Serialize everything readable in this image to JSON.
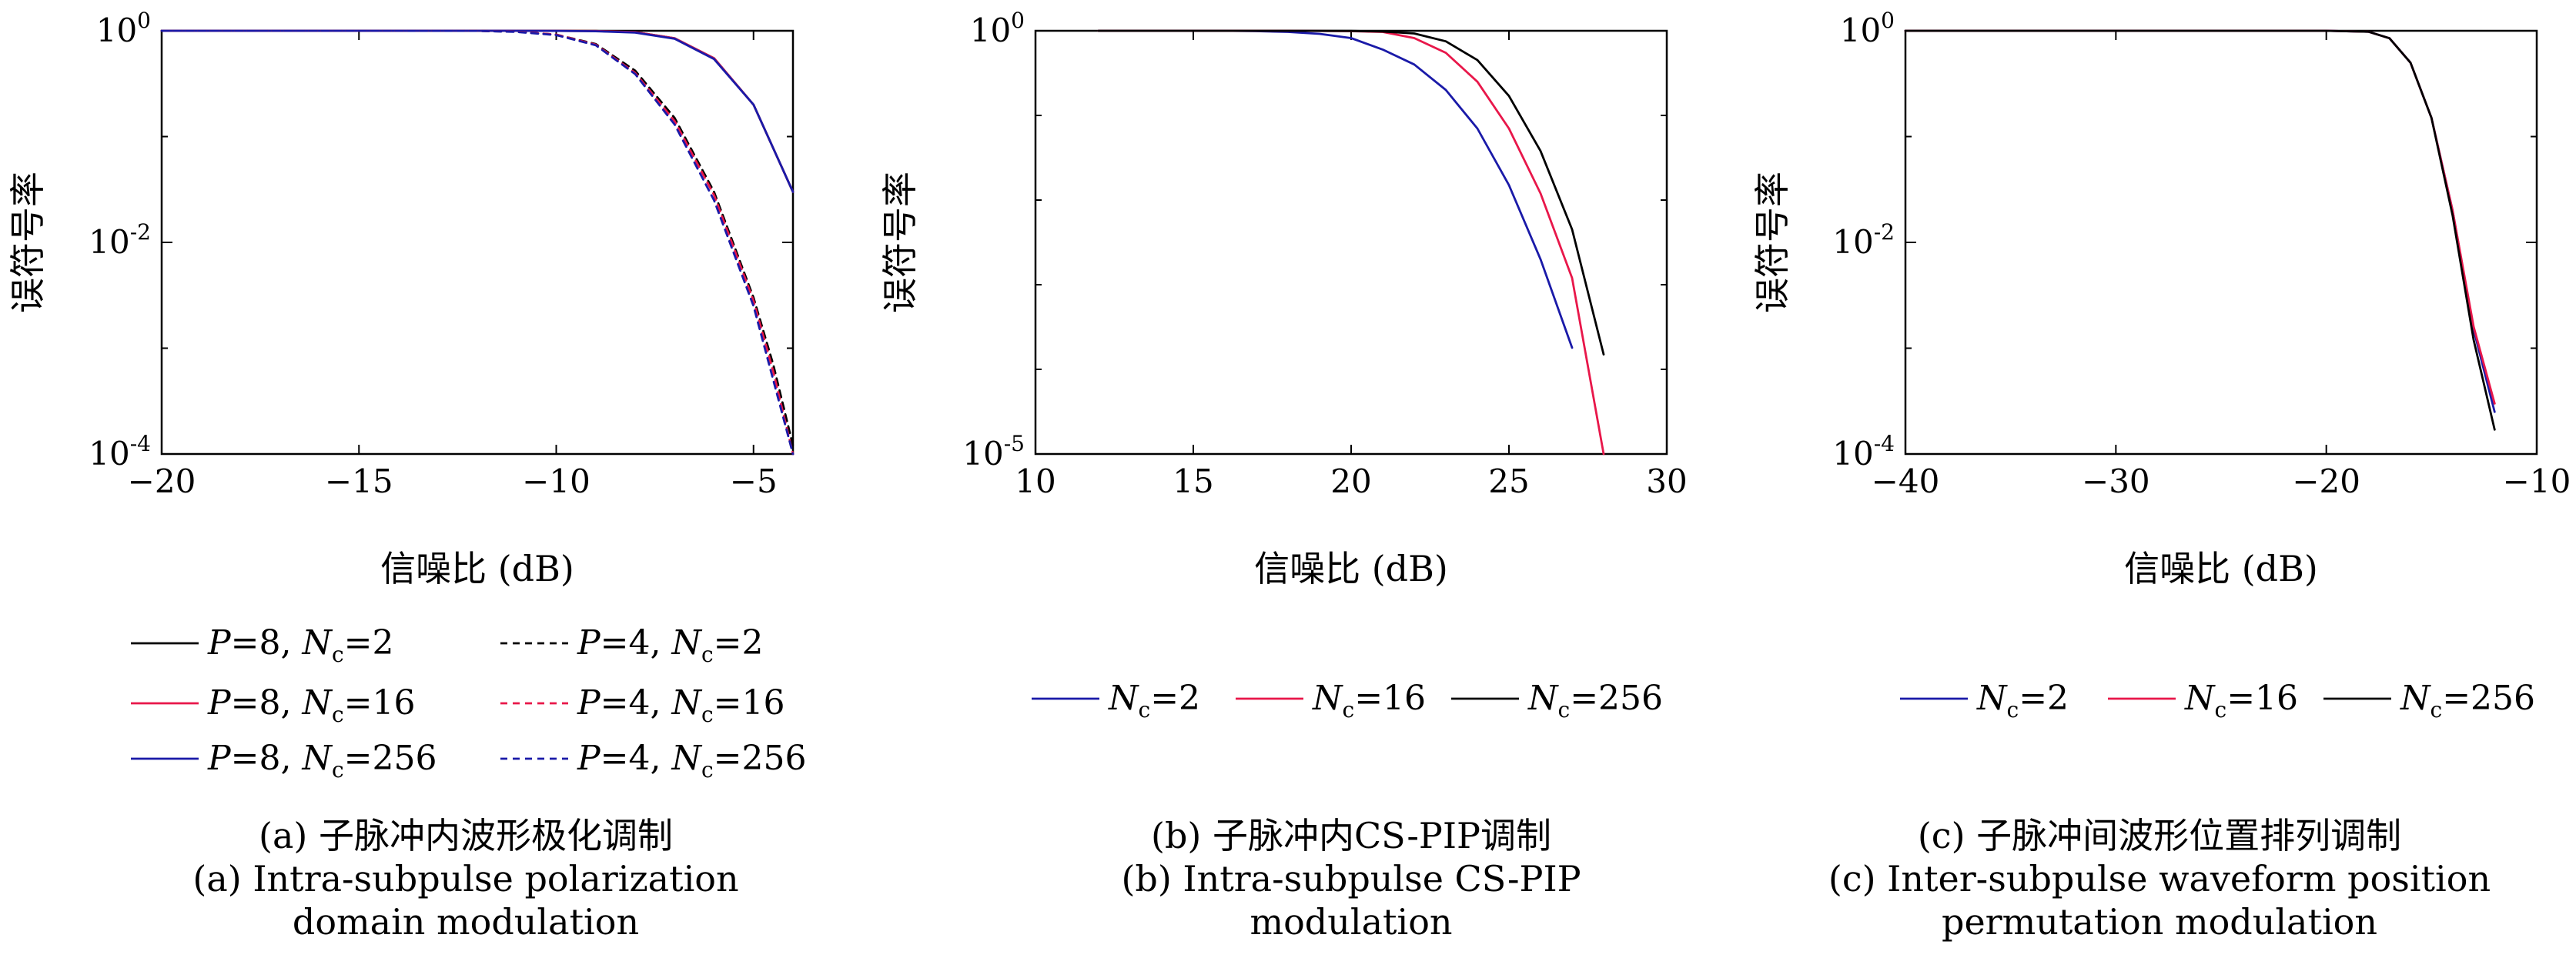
{
  "colors": {
    "black": "#000000",
    "red": "#e8174a",
    "blue": "#1a1aa8"
  },
  "chart_data": [
    {
      "id": "a",
      "type": "line",
      "y_scale": "log",
      "grid": false,
      "xlabel": "信噪比 (dB)",
      "ylabel": "误符号率",
      "xlim": [
        -20,
        -4
      ],
      "ylim": [
        0.0001,
        1
      ],
      "xticks": [
        -20,
        -15,
        -10,
        -5
      ],
      "xtick_labels": [
        "−20",
        "−15",
        "−10",
        "−5"
      ],
      "yticks": [
        1,
        0.01,
        0.0001
      ],
      "ytick_labels": [
        [
          "10",
          "0"
        ],
        [
          "10",
          "-2"
        ],
        [
          "10",
          "-4"
        ]
      ],
      "legend_position": "below",
      "series": [
        {
          "name": "P=8, N_c=2",
          "label_parts": [
            "P",
            "=8, ",
            "N",
            "c",
            "=2"
          ],
          "color": "black",
          "dash": false,
          "x": [
            -20,
            -18,
            -16,
            -14,
            -12,
            -10,
            -9,
            -8,
            -7,
            -6,
            -5,
            -4
          ],
          "y": [
            1,
            1,
            1,
            1,
            1,
            0.999,
            0.995,
            0.97,
            0.85,
            0.55,
            0.2,
            0.03
          ]
        },
        {
          "name": "P=8, N_c=16",
          "label_parts": [
            "P",
            "=8, ",
            "N",
            "c",
            "=16"
          ],
          "color": "red",
          "dash": false,
          "x": [
            -20,
            -18,
            -16,
            -14,
            -12,
            -10,
            -9,
            -8,
            -7,
            -6,
            -5,
            -4
          ],
          "y": [
            1,
            1,
            1,
            1,
            1,
            0.999,
            0.995,
            0.97,
            0.85,
            0.55,
            0.2,
            0.03
          ]
        },
        {
          "name": "P=8, N_c=256",
          "label_parts": [
            "P",
            "=8, ",
            "N",
            "c",
            "=256"
          ],
          "color": "blue",
          "dash": false,
          "x": [
            -20,
            -18,
            -16,
            -14,
            -12,
            -10,
            -9,
            -8,
            -7,
            -6,
            -5,
            -4
          ],
          "y": [
            1,
            1,
            1,
            1,
            1,
            0.998,
            0.99,
            0.96,
            0.84,
            0.54,
            0.2,
            0.03
          ]
        },
        {
          "name": "P=4, N_c=2",
          "label_parts": [
            "P",
            "=4, ",
            "N",
            "c",
            "=2"
          ],
          "color": "black",
          "dash": true,
          "x": [
            -20,
            -15,
            -12,
            -11,
            -10,
            -9,
            -8,
            -7,
            -6,
            -5,
            -4.5,
            -4
          ],
          "y": [
            1,
            1,
            0.998,
            0.98,
            0.92,
            0.75,
            0.42,
            0.15,
            0.03,
            0.003,
            0.0007,
            0.00012
          ]
        },
        {
          "name": "P=4, N_c=16",
          "label_parts": [
            "P",
            "=4, ",
            "N",
            "c",
            "=16"
          ],
          "color": "red",
          "dash": true,
          "x": [
            -20,
            -15,
            -12,
            -11,
            -10,
            -9,
            -8,
            -7,
            -6,
            -5,
            -4.5,
            -4
          ],
          "y": [
            1,
            1,
            0.998,
            0.98,
            0.92,
            0.74,
            0.4,
            0.14,
            0.028,
            0.0028,
            0.0006,
            0.0001
          ]
        },
        {
          "name": "P=4, N_c=256",
          "label_parts": [
            "P",
            "=4, ",
            "N",
            "c",
            "=256"
          ],
          "color": "blue",
          "dash": true,
          "x": [
            -20,
            -15,
            -12,
            -11,
            -10,
            -9,
            -8,
            -7,
            -6,
            -5,
            -4.5,
            -4
          ],
          "y": [
            1,
            1,
            0.998,
            0.975,
            0.91,
            0.73,
            0.39,
            0.13,
            0.025,
            0.0025,
            0.0005,
            9e-05
          ]
        }
      ],
      "caption": [
        "(a) 子脉冲内波形极化调制",
        "(a) Intra-subpulse polarization",
        "domain modulation"
      ]
    },
    {
      "id": "b",
      "type": "line",
      "y_scale": "log",
      "grid": false,
      "xlabel": "信噪比 (dB)",
      "ylabel": "误符号率",
      "xlim": [
        10,
        30
      ],
      "ylim": [
        1e-05,
        1
      ],
      "xticks": [
        10,
        15,
        20,
        25,
        30
      ],
      "xtick_labels": [
        "10",
        "15",
        "20",
        "25",
        "30"
      ],
      "yticks": [
        1,
        1e-05
      ],
      "ytick_labels": [
        [
          "10",
          "0"
        ],
        [
          "10",
          "-5"
        ]
      ],
      "legend_position": "below",
      "series": [
        {
          "name": "N_c=2",
          "label_parts": [
            "",
            "",
            "N",
            "c",
            "=2"
          ],
          "color": "blue",
          "dash": false,
          "x": [
            12,
            16,
            17,
            18,
            19,
            20,
            21,
            22,
            23,
            24,
            25,
            26,
            27
          ],
          "y": [
            1,
            1,
            0.99,
            0.97,
            0.92,
            0.82,
            0.6,
            0.4,
            0.2,
            0.07,
            0.015,
            0.002,
            0.00018
          ]
        },
        {
          "name": "N_c=16",
          "label_parts": [
            "",
            "",
            "N",
            "c",
            "=16"
          ],
          "color": "red",
          "dash": false,
          "x": [
            12,
            18,
            20,
            21,
            22,
            23,
            24,
            25,
            26,
            27,
            28
          ],
          "y": [
            1,
            1,
            0.99,
            0.97,
            0.82,
            0.55,
            0.25,
            0.07,
            0.012,
            0.0012,
            1e-05
          ]
        },
        {
          "name": "N_c=256",
          "label_parts": [
            "",
            "",
            "N",
            "c",
            "=256"
          ],
          "color": "black",
          "dash": false,
          "x": [
            12,
            18,
            20,
            21,
            22,
            23,
            24,
            25,
            26,
            27,
            28
          ],
          "y": [
            1,
            1,
            0.995,
            0.98,
            0.93,
            0.75,
            0.45,
            0.17,
            0.038,
            0.0045,
            0.00015
          ]
        }
      ],
      "caption": [
        "(b) 子脉冲内CS-PIP调制",
        "(b) Intra-subpulse CS-PIP",
        "modulation"
      ]
    },
    {
      "id": "c",
      "type": "line",
      "y_scale": "log",
      "grid": false,
      "xlabel": "信噪比 (dB)",
      "ylabel": "误符号率",
      "xlim": [
        -40,
        -10
      ],
      "ylim": [
        0.0001,
        1
      ],
      "xticks": [
        -40,
        -30,
        -20,
        -10
      ],
      "xtick_labels": [
        "−40",
        "−30",
        "−20",
        "−10"
      ],
      "yticks": [
        1,
        0.01,
        0.0001
      ],
      "ytick_labels": [
        [
          "10",
          "0"
        ],
        [
          "10",
          "-2"
        ],
        [
          "10",
          "-4"
        ]
      ],
      "legend_position": "below",
      "series": [
        {
          "name": "N_c=2",
          "label_parts": [
            "",
            "",
            "N",
            "c",
            "=2"
          ],
          "color": "blue",
          "dash": false,
          "x": [
            -40,
            -30,
            -20,
            -18,
            -17,
            -16,
            -15,
            -14,
            -13,
            -12
          ],
          "y": [
            1,
            1,
            1,
            0.98,
            0.85,
            0.5,
            0.15,
            0.02,
            0.0015,
            0.00025
          ]
        },
        {
          "name": "N_c=16",
          "label_parts": [
            "",
            "",
            "N",
            "c",
            "=16"
          ],
          "color": "red",
          "dash": false,
          "x": [
            -40,
            -30,
            -20,
            -18,
            -17,
            -16,
            -15,
            -14,
            -13,
            -12
          ],
          "y": [
            1,
            1,
            1,
            0.98,
            0.85,
            0.5,
            0.15,
            0.02,
            0.0016,
            0.0003
          ]
        },
        {
          "name": "N_c=256",
          "label_parts": [
            "",
            "",
            "N",
            "c",
            "=256"
          ],
          "color": "black",
          "dash": false,
          "x": [
            -40,
            -30,
            -20,
            -18,
            -17,
            -16,
            -15,
            -14,
            -13,
            -12
          ],
          "y": [
            1,
            1,
            1,
            0.98,
            0.85,
            0.5,
            0.15,
            0.018,
            0.0012,
            0.00017
          ]
        }
      ],
      "caption": [
        "(c) 子脉冲间波形位置排列调制",
        "(c) Inter-subpulse waveform position",
        "permutation modulation"
      ]
    }
  ]
}
